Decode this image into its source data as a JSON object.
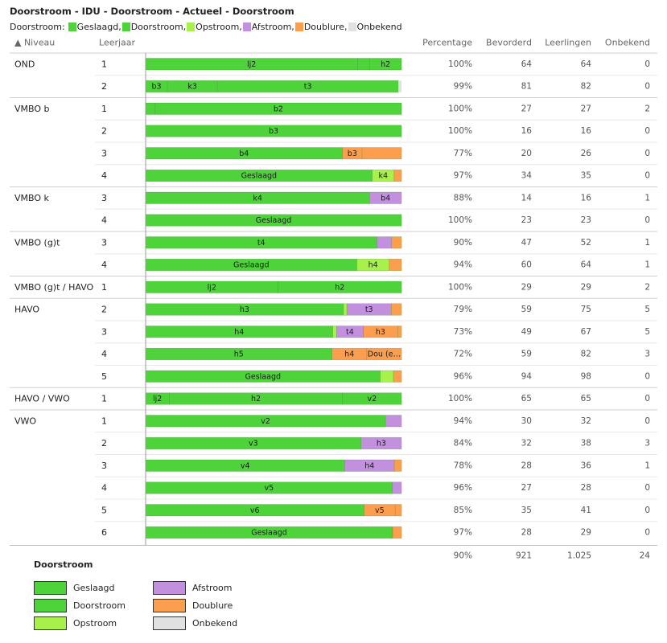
{
  "title": "Doorstroom - IDU - Doorstroom - Actueel - Doorstroom",
  "legend_prefix": "Doorstroom:",
  "legend_bottom_title": "Doorstroom",
  "categories": [
    {
      "key": "geslaagd",
      "name": "Geslaagd",
      "color": "#4fd33a"
    },
    {
      "key": "doorstroom",
      "name": "Doorstroom",
      "color": "#4fd33a"
    },
    {
      "key": "opstroom",
      "name": "Opstroom",
      "color": "#a8f04a"
    },
    {
      "key": "afstroom",
      "name": "Afstroom",
      "color": "#c390e0"
    },
    {
      "key": "doublure",
      "name": "Doublure",
      "color": "#fb9f4f"
    },
    {
      "key": "onbekend",
      "name": "Onbekend",
      "color": "#e1e1e1"
    }
  ],
  "columns": {
    "niveau": "▲ Niveau",
    "leerjaar": "Leerjaar",
    "percentage": "Percentage",
    "bevorderd": "Bevorderd",
    "leerlingen": "Leerlingen",
    "onbekend": "Onbekend"
  },
  "chart_data": {
    "type": "bar",
    "orientation": "horizontal-stacked-100",
    "groups": [
      {
        "niveau": "OND",
        "rows": [
          {
            "leerjaar": "1",
            "percentage": "100%",
            "bevorderd": "64",
            "leerlingen": "64",
            "onbekend": "0",
            "segments": [
              {
                "cat": "doorstroom",
                "label": "lj2",
                "value": 53
              },
              {
                "cat": "doorstroom",
                "label": "",
                "value": 3
              },
              {
                "cat": "doorstroom",
                "label": "h2",
                "value": 8
              }
            ]
          },
          {
            "leerjaar": "2",
            "percentage": "99%",
            "bevorderd": "81",
            "leerlingen": "82",
            "onbekend": "0",
            "segments": [
              {
                "cat": "doorstroom",
                "label": "b3",
                "value": 7
              },
              {
                "cat": "doorstroom",
                "label": "k3",
                "value": 16
              },
              {
                "cat": "doorstroom",
                "label": "t3",
                "value": 58
              },
              {
                "cat": "onbekend",
                "label": "",
                "value": 1
              }
            ]
          }
        ]
      },
      {
        "niveau": "VMBO b",
        "rows": [
          {
            "leerjaar": "1",
            "percentage": "100%",
            "bevorderd": "27",
            "leerlingen": "27",
            "onbekend": "2",
            "segments": [
              {
                "cat": "doorstroom",
                "label": "",
                "value": 1
              },
              {
                "cat": "doorstroom",
                "label": "b2",
                "value": 26
              }
            ]
          },
          {
            "leerjaar": "2",
            "percentage": "100%",
            "bevorderd": "16",
            "leerlingen": "16",
            "onbekend": "0",
            "segments": [
              {
                "cat": "doorstroom",
                "label": "b3",
                "value": 16
              }
            ]
          },
          {
            "leerjaar": "3",
            "percentage": "77%",
            "bevorderd": "20",
            "leerlingen": "26",
            "onbekend": "0",
            "segments": [
              {
                "cat": "doorstroom",
                "label": "b4",
                "value": 20
              },
              {
                "cat": "doublure",
                "label": "b3",
                "value": 2
              },
              {
                "cat": "doublure",
                "label": "",
                "value": 4
              }
            ]
          },
          {
            "leerjaar": "4",
            "percentage": "97%",
            "bevorderd": "34",
            "leerlingen": "35",
            "onbekend": "0",
            "segments": [
              {
                "cat": "geslaagd",
                "label": "Geslaagd",
                "value": 31
              },
              {
                "cat": "opstroom",
                "label": "k4",
                "value": 3
              },
              {
                "cat": "doublure",
                "label": "",
                "value": 1
              }
            ]
          }
        ]
      },
      {
        "niveau": "VMBO k",
        "rows": [
          {
            "leerjaar": "3",
            "percentage": "88%",
            "bevorderd": "14",
            "leerlingen": "16",
            "onbekend": "1",
            "segments": [
              {
                "cat": "doorstroom",
                "label": "k4",
                "value": 14
              },
              {
                "cat": "afstroom",
                "label": "b4",
                "value": 2
              }
            ]
          },
          {
            "leerjaar": "4",
            "percentage": "100%",
            "bevorderd": "23",
            "leerlingen": "23",
            "onbekend": "0",
            "segments": [
              {
                "cat": "geslaagd",
                "label": "Geslaagd",
                "value": 23
              }
            ]
          }
        ]
      },
      {
        "niveau": "VMBO (g)t",
        "rows": [
          {
            "leerjaar": "3",
            "percentage": "90%",
            "bevorderd": "47",
            "leerlingen": "52",
            "onbekend": "1",
            "segments": [
              {
                "cat": "doorstroom",
                "label": "t4",
                "value": 47
              },
              {
                "cat": "afstroom",
                "label": "",
                "value": 3
              },
              {
                "cat": "doublure",
                "label": "",
                "value": 2
              }
            ]
          },
          {
            "leerjaar": "4",
            "percentage": "94%",
            "bevorderd": "60",
            "leerlingen": "64",
            "onbekend": "1",
            "segments": [
              {
                "cat": "geslaagd",
                "label": "Geslaagd",
                "value": 52
              },
              {
                "cat": "opstroom",
                "label": "h4",
                "value": 8
              },
              {
                "cat": "doublure",
                "label": "",
                "value": 3
              }
            ]
          }
        ]
      },
      {
        "niveau": "VMBO (g)t / HAVO",
        "rows": [
          {
            "leerjaar": "1",
            "percentage": "100%",
            "bevorderd": "29",
            "leerlingen": "29",
            "onbekend": "2",
            "segments": [
              {
                "cat": "doorstroom",
                "label": "lj2",
                "value": 15
              },
              {
                "cat": "doorstroom",
                "label": "h2",
                "value": 14
              }
            ]
          }
        ]
      },
      {
        "niveau": "HAVO",
        "rows": [
          {
            "leerjaar": "2",
            "percentage": "79%",
            "bevorderd": "59",
            "leerlingen": "75",
            "onbekend": "5",
            "segments": [
              {
                "cat": "doorstroom",
                "label": "h3",
                "value": 58
              },
              {
                "cat": "opstroom",
                "label": "",
                "value": 1
              },
              {
                "cat": "afstroom",
                "label": "t3",
                "value": 13
              },
              {
                "cat": "doublure",
                "label": "",
                "value": 3
              }
            ]
          },
          {
            "leerjaar": "3",
            "percentage": "73%",
            "bevorderd": "49",
            "leerlingen": "67",
            "onbekend": "5",
            "segments": [
              {
                "cat": "doorstroom",
                "label": "h4",
                "value": 49
              },
              {
                "cat": "opstroom",
                "label": "",
                "value": 1
              },
              {
                "cat": "afstroom",
                "label": "t4",
                "value": 7
              },
              {
                "cat": "doublure",
                "label": "h3",
                "value": 9
              },
              {
                "cat": "doublure",
                "label": "",
                "value": 1
              }
            ]
          },
          {
            "leerjaar": "4",
            "percentage": "72%",
            "bevorderd": "59",
            "leerlingen": "82",
            "onbekend": "3",
            "segments": [
              {
                "cat": "doorstroom",
                "label": "h5",
                "value": 59
              },
              {
                "cat": "doublure",
                "label": "h4",
                "value": 11
              },
              {
                "cat": "doublure",
                "label": "Dou (e…",
                "value": 11
              }
            ]
          },
          {
            "leerjaar": "5",
            "percentage": "96%",
            "bevorderd": "94",
            "leerlingen": "98",
            "onbekend": "0",
            "segments": [
              {
                "cat": "geslaagd",
                "label": "Geslaagd",
                "value": 88
              },
              {
                "cat": "opstroom",
                "label": "",
                "value": 5
              },
              {
                "cat": "doublure",
                "label": "",
                "value": 3
              }
            ]
          }
        ]
      },
      {
        "niveau": "HAVO / VWO",
        "rows": [
          {
            "leerjaar": "1",
            "percentage": "100%",
            "bevorderd": "65",
            "leerlingen": "65",
            "onbekend": "0",
            "segments": [
              {
                "cat": "doorstroom",
                "label": "lj2",
                "value": 6
              },
              {
                "cat": "doorstroom",
                "label": "h2",
                "value": 44
              },
              {
                "cat": "doorstroom",
                "label": "v2",
                "value": 15
              }
            ]
          }
        ]
      },
      {
        "niveau": "VWO",
        "rows": [
          {
            "leerjaar": "1",
            "percentage": "94%",
            "bevorderd": "30",
            "leerlingen": "32",
            "onbekend": "0",
            "segments": [
              {
                "cat": "doorstroom",
                "label": "v2",
                "value": 30
              },
              {
                "cat": "afstroom",
                "label": "",
                "value": 2
              }
            ]
          },
          {
            "leerjaar": "2",
            "percentage": "84%",
            "bevorderd": "32",
            "leerlingen": "38",
            "onbekend": "3",
            "segments": [
              {
                "cat": "doorstroom",
                "label": "v3",
                "value": 32
              },
              {
                "cat": "afstroom",
                "label": "h3",
                "value": 6
              }
            ]
          },
          {
            "leerjaar": "3",
            "percentage": "78%",
            "bevorderd": "28",
            "leerlingen": "36",
            "onbekend": "1",
            "segments": [
              {
                "cat": "doorstroom",
                "label": "v4",
                "value": 28
              },
              {
                "cat": "afstroom",
                "label": "h4",
                "value": 7
              },
              {
                "cat": "doublure",
                "label": "",
                "value": 1
              }
            ]
          },
          {
            "leerjaar": "4",
            "percentage": "96%",
            "bevorderd": "27",
            "leerlingen": "28",
            "onbekend": "0",
            "segments": [
              {
                "cat": "doorstroom",
                "label": "v5",
                "value": 27
              },
              {
                "cat": "afstroom",
                "label": "",
                "value": 1
              }
            ]
          },
          {
            "leerjaar": "5",
            "percentage": "85%",
            "bevorderd": "35",
            "leerlingen": "41",
            "onbekend": "0",
            "segments": [
              {
                "cat": "doorstroom",
                "label": "v6",
                "value": 35
              },
              {
                "cat": "doublure",
                "label": "v5",
                "value": 5
              },
              {
                "cat": "doublure",
                "label": "",
                "value": 1
              }
            ]
          },
          {
            "leerjaar": "6",
            "percentage": "97%",
            "bevorderd": "28",
            "leerlingen": "29",
            "onbekend": "0",
            "segments": [
              {
                "cat": "geslaagd",
                "label": "Geslaagd",
                "value": 28
              },
              {
                "cat": "doublure",
                "label": "",
                "value": 1
              }
            ]
          }
        ]
      }
    ]
  },
  "totals": {
    "percentage": "90%",
    "bevorderd": "921",
    "leerlingen": "1.025",
    "onbekend": "24"
  }
}
